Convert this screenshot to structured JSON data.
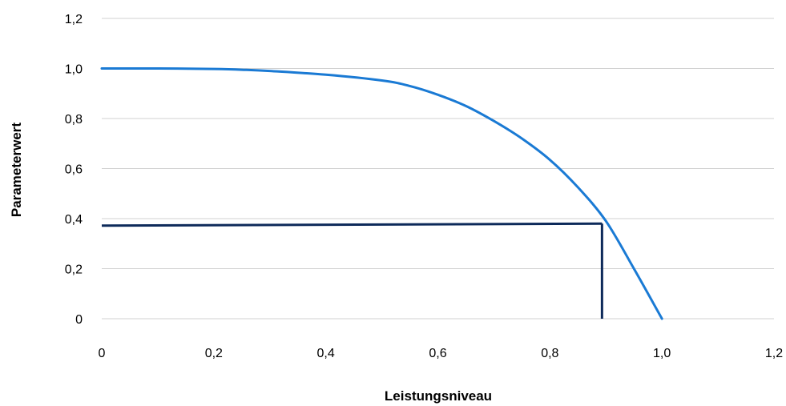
{
  "chart_data": {
    "type": "line",
    "title": "",
    "xlabel": "Leistungsniveau",
    "ylabel": "Parameterwert",
    "xlim": [
      0,
      1.2
    ],
    "ylim": [
      0,
      1.2
    ],
    "grid": "horizontal",
    "x_ticks": [
      "0",
      "0,2",
      "0,4",
      "0,6",
      "0,8",
      "1,0",
      "1,2"
    ],
    "y_ticks": [
      "0",
      "0,2",
      "0,4",
      "0,6",
      "0,8",
      "1,0",
      "1,2"
    ],
    "colors": {
      "curve": "#1a7ad4",
      "marker": "#0d2a5a",
      "grid": "#d0d0d0"
    },
    "series": [
      {
        "x": [
          0,
          0.1,
          0.2,
          0.25,
          0.3,
          0.4,
          0.5,
          0.55,
          0.6,
          0.65,
          0.7,
          0.75,
          0.8,
          0.85,
          0.9,
          0.95,
          1.0
        ],
        "y": [
          1.0,
          1.0,
          0.998,
          0.995,
          0.99,
          0.975,
          0.952,
          0.93,
          0.895,
          0.85,
          0.79,
          0.72,
          0.635,
          0.525,
          0.39,
          0.2,
          0.0
        ]
      }
    ],
    "annotation": {
      "x": 0.893,
      "y": 0.38
    }
  }
}
